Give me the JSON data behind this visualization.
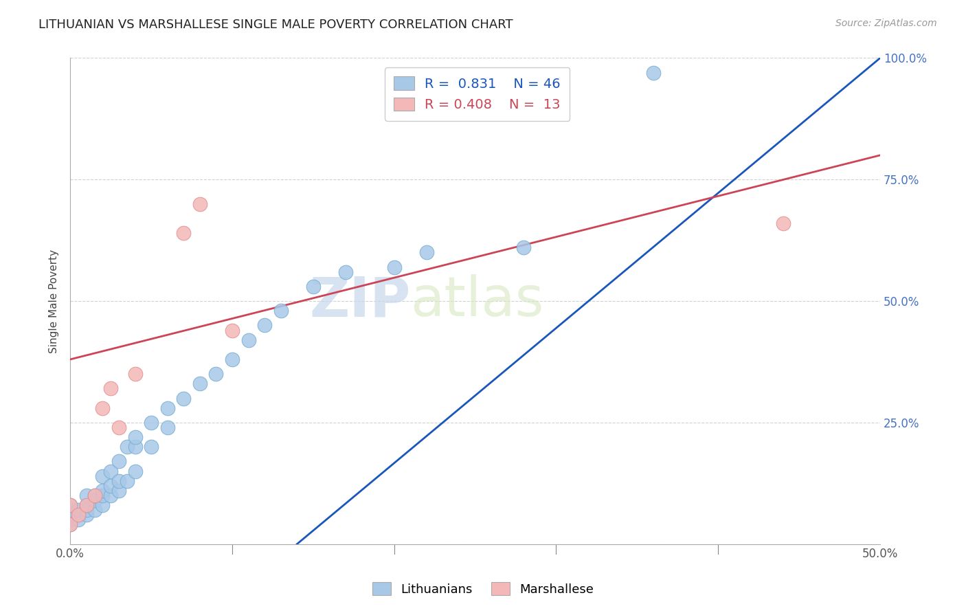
{
  "title": "LITHUANIAN VS MARSHALLESE SINGLE MALE POVERTY CORRELATION CHART",
  "source": "Source: ZipAtlas.com",
  "xlabel": "",
  "ylabel": "Single Male Poverty",
  "xlim": [
    0.0,
    0.5
  ],
  "ylim": [
    0.0,
    1.0
  ],
  "xticks": [
    0.0,
    0.1,
    0.2,
    0.3,
    0.4,
    0.5
  ],
  "yticks": [
    0.0,
    0.25,
    0.5,
    0.75,
    1.0
  ],
  "xtick_labels": [
    "0.0%",
    "",
    "",
    "",
    "",
    "50.0%"
  ],
  "ytick_labels_right": [
    "",
    "25.0%",
    "50.0%",
    "75.0%",
    "100.0%"
  ],
  "blue_R": 0.831,
  "blue_N": 46,
  "pink_R": 0.408,
  "pink_N": 13,
  "blue_color": "#a8c8e8",
  "pink_color": "#f4b8b8",
  "blue_edge_color": "#7bafd4",
  "pink_edge_color": "#e89090",
  "blue_line_color": "#1a56bb",
  "pink_line_color": "#cc4455",
  "watermark_zip": "ZIP",
  "watermark_atlas": "atlas",
  "legend_label_blue": "Lithuanians",
  "legend_label_pink": "Marshallese",
  "blue_scatter_x": [
    0.0,
    0.0,
    0.0,
    0.0,
    0.0,
    0.005,
    0.005,
    0.01,
    0.01,
    0.01,
    0.01,
    0.015,
    0.015,
    0.015,
    0.02,
    0.02,
    0.02,
    0.02,
    0.025,
    0.025,
    0.025,
    0.03,
    0.03,
    0.03,
    0.035,
    0.035,
    0.04,
    0.04,
    0.04,
    0.05,
    0.05,
    0.06,
    0.06,
    0.07,
    0.08,
    0.09,
    0.1,
    0.11,
    0.12,
    0.13,
    0.15,
    0.17,
    0.2,
    0.22,
    0.28,
    0.36
  ],
  "blue_scatter_y": [
    0.04,
    0.05,
    0.06,
    0.07,
    0.08,
    0.05,
    0.07,
    0.06,
    0.07,
    0.08,
    0.1,
    0.07,
    0.09,
    0.1,
    0.08,
    0.1,
    0.11,
    0.14,
    0.1,
    0.12,
    0.15,
    0.11,
    0.13,
    0.17,
    0.13,
    0.2,
    0.15,
    0.2,
    0.22,
    0.2,
    0.25,
    0.24,
    0.28,
    0.3,
    0.33,
    0.35,
    0.38,
    0.42,
    0.45,
    0.48,
    0.53,
    0.56,
    0.57,
    0.6,
    0.61,
    0.97
  ],
  "pink_scatter_x": [
    0.0,
    0.0,
    0.005,
    0.01,
    0.015,
    0.02,
    0.025,
    0.03,
    0.04,
    0.07,
    0.08,
    0.1,
    0.44
  ],
  "pink_scatter_y": [
    0.04,
    0.08,
    0.06,
    0.08,
    0.1,
    0.28,
    0.32,
    0.24,
    0.35,
    0.64,
    0.7,
    0.44,
    0.66
  ],
  "blue_trend_x": [
    0.14,
    0.5
  ],
  "blue_trend_y": [
    0.0,
    1.0
  ],
  "pink_trend_x": [
    0.0,
    0.5
  ],
  "pink_trend_y": [
    0.38,
    0.8
  ]
}
